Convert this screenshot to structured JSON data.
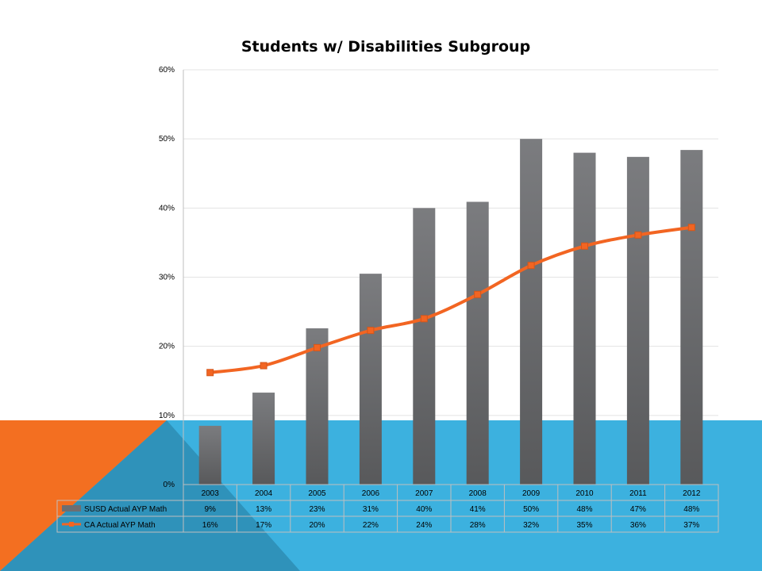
{
  "slide": {
    "colors": {
      "blue_band": "#3cb1df",
      "orange_triangle": "#f36f21",
      "triangle_overlap": "#2e8fb6"
    }
  },
  "chart_data": {
    "type": "bar",
    "title": "Students w/ Disabilities Subgroup",
    "categories": [
      "2003",
      "2004",
      "2005",
      "2006",
      "2007",
      "2008",
      "2009",
      "2010",
      "2011",
      "2012"
    ],
    "ylim": [
      0,
      0.6
    ],
    "yticks": [
      0,
      0.1,
      0.2,
      0.3,
      0.4,
      0.5,
      0.6
    ],
    "ytick_labels": [
      "0%",
      "10%",
      "20%",
      "30%",
      "40%",
      "50%",
      "60%"
    ],
    "grid": true,
    "legend": "data-table",
    "series": [
      {
        "name": "SUSD Actual AYP Math",
        "kind": "bar",
        "color": "#6d6e71",
        "values": [
          0.085,
          0.133,
          0.226,
          0.305,
          0.4,
          0.409,
          0.5,
          0.48,
          0.474,
          0.484
        ],
        "labels": [
          "9%",
          "13%",
          "23%",
          "31%",
          "40%",
          "41%",
          "50%",
          "48%",
          "47%",
          "48%"
        ]
      },
      {
        "name": "CA Actual AYP Math",
        "kind": "line",
        "color": "#f26522",
        "values": [
          0.162,
          0.172,
          0.198,
          0.223,
          0.24,
          0.275,
          0.317,
          0.345,
          0.361,
          0.372
        ],
        "labels": [
          "16%",
          "17%",
          "20%",
          "22%",
          "24%",
          "28%",
          "32%",
          "35%",
          "36%",
          "37%"
        ]
      }
    ]
  }
}
